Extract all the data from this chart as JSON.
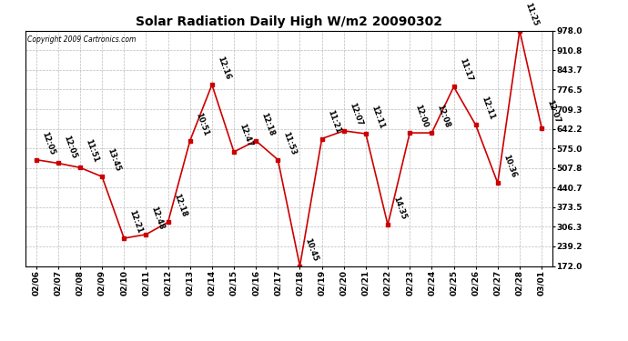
{
  "title": "Solar Radiation Daily High W/m2 20090302",
  "copyright": "Copyright 2009 Cartronics.com",
  "dates": [
    "02/06",
    "02/07",
    "02/08",
    "02/09",
    "02/10",
    "02/11",
    "02/12",
    "02/13",
    "02/14",
    "02/15",
    "02/16",
    "02/17",
    "02/18",
    "02/19",
    "02/20",
    "02/21",
    "02/22",
    "02/23",
    "02/24",
    "02/25",
    "02/26",
    "02/27",
    "02/28",
    "03/01"
  ],
  "values": [
    536,
    524,
    509,
    478,
    267,
    280,
    322,
    601,
    793,
    563,
    601,
    536,
    172,
    608,
    635,
    625,
    313,
    628,
    628,
    786,
    655,
    456,
    978,
    645
  ],
  "labels": [
    "12:05",
    "12:05",
    "11:51",
    "13:45",
    "12:21",
    "12:48",
    "12:18",
    "10:51",
    "12:16",
    "12:47",
    "12:18",
    "11:53",
    "10:45",
    "11:21",
    "12:07",
    "12:11",
    "14:35",
    "12:00",
    "12:08",
    "11:17",
    "12:11",
    "10:36",
    "11:25",
    "12:07"
  ],
  "ylim": [
    172.0,
    978.0
  ],
  "yticks": [
    172.0,
    239.2,
    306.3,
    373.5,
    440.7,
    507.8,
    575.0,
    642.2,
    709.3,
    776.5,
    843.7,
    910.8,
    978.0
  ],
  "line_color": "#cc0000",
  "marker_color": "#cc0000",
  "bg_color": "#ffffff",
  "grid_color": "#bbbbbb",
  "title_fontsize": 10,
  "label_fontsize": 6,
  "tick_fontsize": 6.5,
  "copyright_fontsize": 5.5
}
